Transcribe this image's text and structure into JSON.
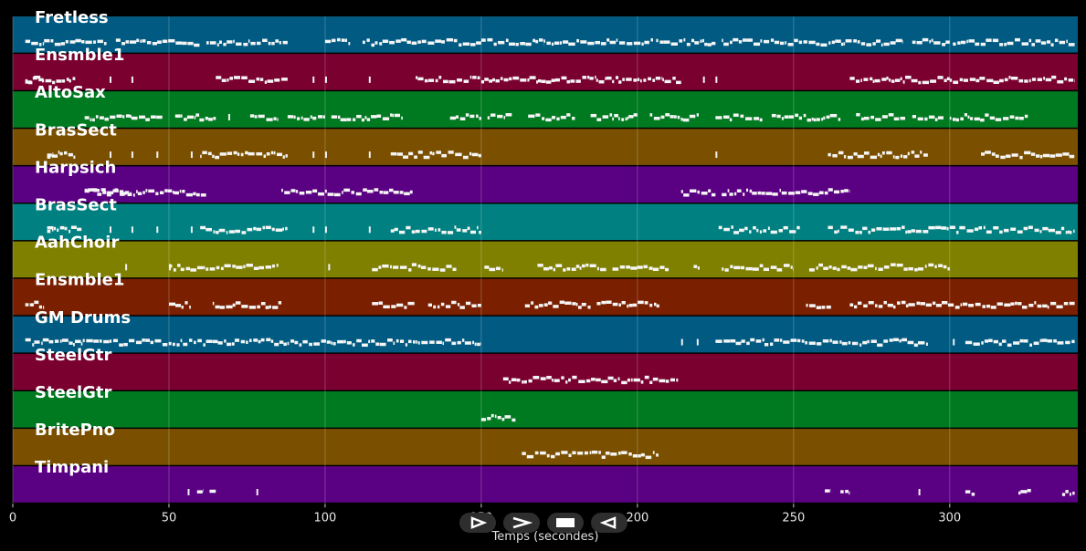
{
  "chart_data": {
    "type": "piano-roll",
    "xlabel": "Temps (secondes)",
    "xlim": [
      0,
      341
    ],
    "xticks": [
      0,
      50,
      100,
      150,
      200,
      250,
      300
    ],
    "tracks": [
      {
        "name": "Fretless",
        "color": "#005A82",
        "segments": [
          [
            4,
            10
          ],
          [
            10,
            20
          ],
          [
            20,
            30
          ],
          [
            33,
            60
          ],
          [
            62,
            88
          ],
          [
            100,
            108
          ],
          [
            112,
            150
          ],
          [
            150,
            170
          ],
          [
            170,
            205
          ],
          [
            206,
            225
          ],
          [
            227,
            285
          ],
          [
            288,
            300
          ],
          [
            301,
            340
          ]
        ]
      },
      {
        "name": "Ensmble1",
        "color": "#7A0030",
        "segments": [
          [
            4,
            18
          ],
          [
            4,
            10
          ],
          [
            18,
            20
          ],
          [
            31,
            32
          ],
          [
            38,
            39
          ],
          [
            65,
            88
          ],
          [
            96,
            97
          ],
          [
            100,
            101
          ],
          [
            114,
            115
          ],
          [
            129,
            150
          ],
          [
            150,
            190
          ],
          [
            190,
            208
          ],
          [
            208,
            214
          ],
          [
            221,
            222
          ],
          [
            225,
            226
          ],
          [
            268,
            300
          ],
          [
            300,
            340
          ]
        ]
      },
      {
        "name": "AltoSax",
        "color": "#007A20",
        "segments": [
          [
            23,
            38
          ],
          [
            38,
            48
          ],
          [
            52,
            65
          ],
          [
            69,
            70
          ],
          [
            76,
            85
          ],
          [
            88,
            100
          ],
          [
            102,
            110
          ],
          [
            110,
            125
          ],
          [
            140,
            150
          ],
          [
            152,
            160
          ],
          [
            165,
            180
          ],
          [
            185,
            200
          ],
          [
            204,
            220
          ],
          [
            225,
            240
          ],
          [
            243,
            265
          ],
          [
            270,
            286
          ],
          [
            288,
            298
          ],
          [
            300,
            325
          ]
        ]
      },
      {
        "name": "BrasSect",
        "color": "#7A5000",
        "segments": [
          [
            11,
            20
          ],
          [
            11,
            13
          ],
          [
            31,
            32
          ],
          [
            38,
            39
          ],
          [
            46,
            47
          ],
          [
            57,
            58
          ],
          [
            60,
            88
          ],
          [
            96,
            97
          ],
          [
            100,
            101
          ],
          [
            114,
            115
          ],
          [
            121,
            150
          ],
          [
            225,
            226
          ],
          [
            261,
            293
          ],
          [
            310,
            340
          ]
        ]
      },
      {
        "name": "Harpsich",
        "color": "#5A0082",
        "segments": [
          [
            23,
            62
          ],
          [
            23,
            38
          ],
          [
            86,
            128
          ],
          [
            214,
            225
          ],
          [
            227,
            268
          ]
        ]
      },
      {
        "name": "BrasSect",
        "color": "#008080",
        "segments": [
          [
            11,
            22
          ],
          [
            11,
            13
          ],
          [
            31,
            32
          ],
          [
            38,
            39
          ],
          [
            46,
            47
          ],
          [
            57,
            58
          ],
          [
            60,
            88
          ],
          [
            96,
            97
          ],
          [
            100,
            101
          ],
          [
            114,
            115
          ],
          [
            121,
            150
          ],
          [
            226,
            252
          ],
          [
            261,
            340
          ]
        ]
      },
      {
        "name": "AahChoir",
        "color": "#7F7F00",
        "segments": [
          [
            36,
            37
          ],
          [
            50,
            51
          ],
          [
            50,
            85
          ],
          [
            101,
            102
          ],
          [
            115,
            142
          ],
          [
            151,
            157
          ],
          [
            168,
            190
          ],
          [
            192,
            210
          ],
          [
            218,
            220
          ],
          [
            227,
            250
          ],
          [
            255,
            300
          ]
        ]
      },
      {
        "name": "Ensmble1",
        "color": "#7A2000",
        "segments": [
          [
            4,
            10
          ],
          [
            50,
            57
          ],
          [
            64,
            86
          ],
          [
            115,
            129
          ],
          [
            133,
            150
          ],
          [
            164,
            185
          ],
          [
            187,
            207
          ],
          [
            254,
            262
          ],
          [
            268,
            340
          ]
        ]
      },
      {
        "name": "GM Drums",
        "color": "#005A82",
        "segments": [
          [
            4,
            150
          ],
          [
            214,
            215
          ],
          [
            219,
            220
          ],
          [
            225,
            240
          ],
          [
            240,
            270
          ],
          [
            270,
            293
          ],
          [
            301,
            302
          ],
          [
            305,
            340
          ]
        ]
      },
      {
        "name": "SteelGtr",
        "color": "#7A0030",
        "segments": [
          [
            157,
            213
          ]
        ]
      },
      {
        "name": "SteelGtr",
        "color": "#007A20",
        "segments": [
          [
            150,
            161
          ]
        ]
      },
      {
        "name": "BritePno",
        "color": "#7A5000",
        "segments": [
          [
            163,
            207
          ]
        ]
      },
      {
        "name": "Timpani",
        "color": "#5A0082",
        "segments": [
          [
            56,
            57
          ],
          [
            59,
            61
          ],
          [
            63,
            65
          ],
          [
            78,
            79
          ],
          [
            260,
            262
          ],
          [
            265,
            268
          ],
          [
            290,
            291
          ],
          [
            305,
            308
          ],
          [
            322,
            326
          ],
          [
            336,
            340
          ]
        ]
      }
    ]
  },
  "controls": {
    "play_forward_label": "▶",
    "fast_forward_label": "»",
    "stop_label": "■",
    "play_backward_label": "◀"
  }
}
